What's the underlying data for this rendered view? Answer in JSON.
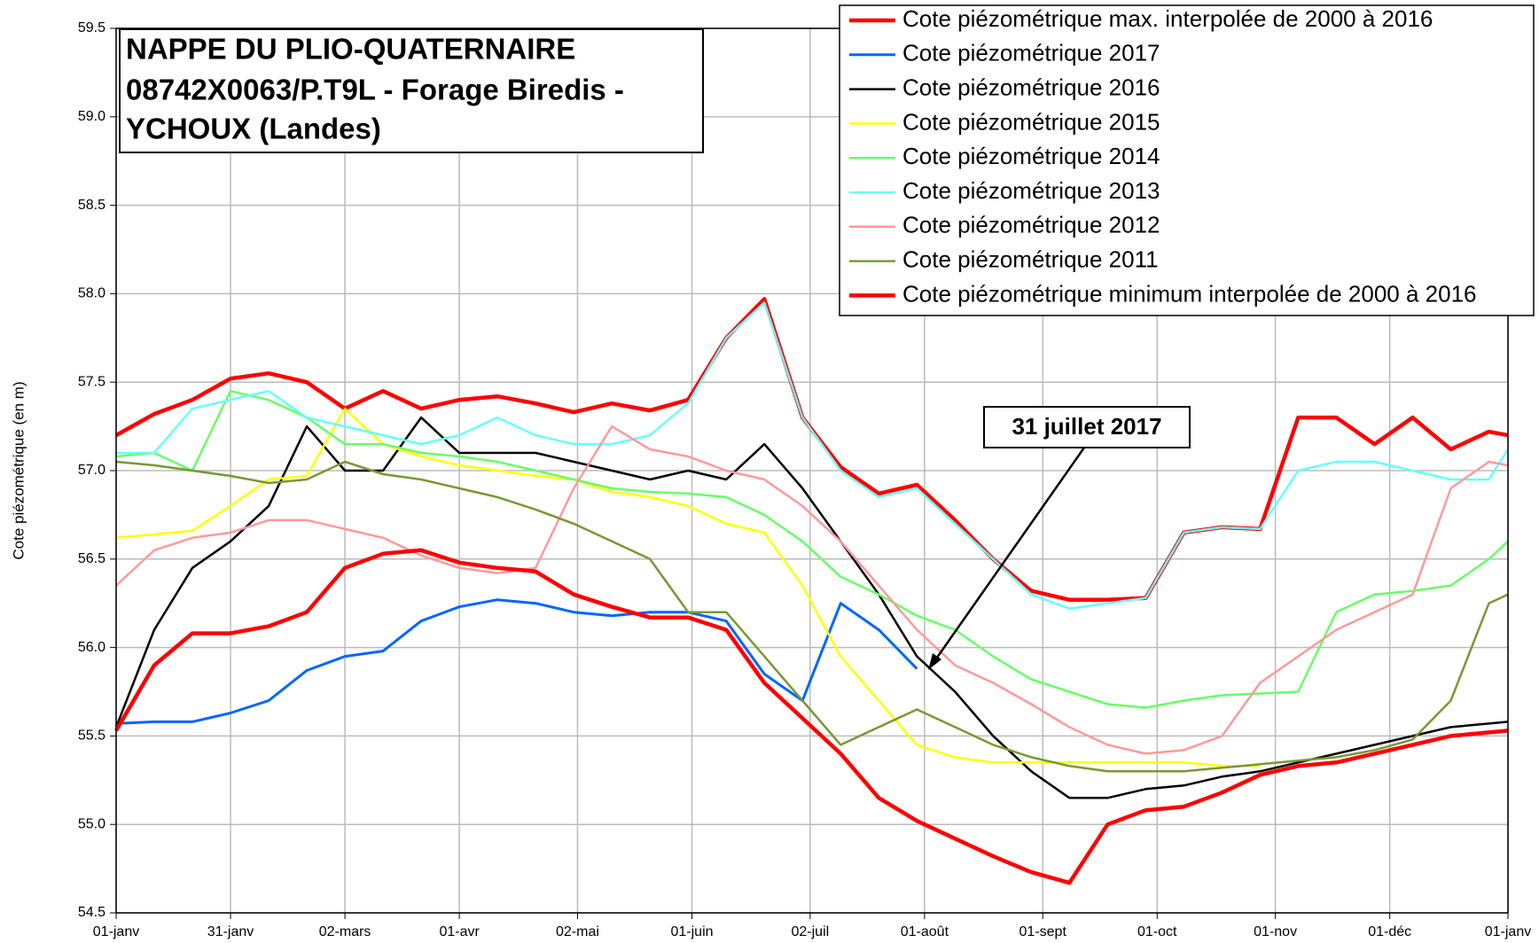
{
  "chart_data": {
    "type": "line",
    "title": [
      "NAPPE DU PLIO-QUATERNAIRE",
      "08742X0063/P.T9L - Forage Biredis -",
      "YCHOUX (Landes)"
    ],
    "y_label": "Cote piézométrique (en m)",
    "annotation": "31 juillet 2017",
    "x": [
      0,
      10,
      20,
      30,
      40,
      50,
      60,
      70,
      80,
      90,
      100,
      110,
      120,
      130,
      140,
      150,
      160,
      170,
      180,
      190,
      200,
      210,
      220,
      230,
      240,
      250,
      260,
      270,
      280,
      290,
      300,
      310,
      320,
      330,
      340,
      350,
      360,
      365
    ],
    "xlim": [
      0,
      365
    ],
    "xticks": [
      {
        "value": 0,
        "label": "01-janv"
      },
      {
        "value": 30,
        "label": "31-janv"
      },
      {
        "value": 60,
        "label": "02-mars"
      },
      {
        "value": 90,
        "label": "01-avr"
      },
      {
        "value": 121,
        "label": "02-mai"
      },
      {
        "value": 151,
        "label": "01-juin"
      },
      {
        "value": 182,
        "label": "02-juil"
      },
      {
        "value": 212,
        "label": "01-août"
      },
      {
        "value": 243,
        "label": "01-sept"
      },
      {
        "value": 273,
        "label": "01-oct"
      },
      {
        "value": 304,
        "label": "01-nov"
      },
      {
        "value": 334,
        "label": "01-déc"
      },
      {
        "value": 365,
        "label": "01-janv"
      }
    ],
    "ylim": [
      54.5,
      59.5
    ],
    "yticks": [
      54.5,
      {
        "value": 55,
        "label": "55.0"
      },
      55.5,
      {
        "value": 56,
        "label": "56.0"
      },
      56.5,
      {
        "value": 57,
        "label": "57.0"
      },
      57.5,
      {
        "value": 58,
        "label": "58.0"
      },
      58.5,
      {
        "value": 59,
        "label": "59.0"
      },
      59.5
    ],
    "grid": true,
    "legend": "upper right",
    "series": [
      {
        "name": "Cote piézométrique max. interpolée de 2000 à 2016",
        "color": "#ff0000",
        "width": 4.5,
        "values": [
          57.2,
          57.32,
          57.4,
          57.52,
          57.55,
          57.5,
          57.35,
          57.45,
          57.35,
          57.4,
          57.42,
          57.38,
          57.33,
          57.38,
          57.34,
          57.4,
          57.75,
          57.97,
          57.3,
          57.02,
          56.87,
          56.92,
          56.72,
          56.5,
          56.32,
          56.27,
          56.27,
          56.28,
          56.65,
          56.68,
          56.67,
          57.3,
          57.3,
          57.15,
          57.3,
          57.12,
          57.22,
          57.2
        ]
      },
      {
        "name": "Cote piézométrique 2017",
        "color": "#0066ff",
        "width": 3,
        "values": [
          55.57,
          55.58,
          55.58,
          55.63,
          55.7,
          55.87,
          55.95,
          55.98,
          56.15,
          56.23,
          56.27,
          56.25,
          56.2,
          56.18,
          56.2,
          56.2,
          56.15,
          55.85,
          55.7,
          56.25,
          56.1,
          55.88,
          null,
          null,
          null,
          null,
          null,
          null,
          null,
          null,
          null,
          null,
          null,
          null,
          null,
          null,
          null,
          null
        ]
      },
      {
        "name": "Cote piézométrique 2016",
        "color": "#000000",
        "width": 2.5,
        "values": [
          55.55,
          56.1,
          56.45,
          56.6,
          56.8,
          57.25,
          57.0,
          57.0,
          57.3,
          57.1,
          57.1,
          57.1,
          57.05,
          57.0,
          56.95,
          57.0,
          56.95,
          57.15,
          56.9,
          56.6,
          56.3,
          55.95,
          55.75,
          55.5,
          55.3,
          55.15,
          55.15,
          55.2,
          55.22,
          55.27,
          55.3,
          55.35,
          55.4,
          55.45,
          55.5,
          55.55,
          55.57,
          55.58
        ]
      },
      {
        "name": "Cote piézométrique 2015",
        "color": "#ffff00",
        "width": 2.5,
        "values": [
          56.62,
          56.64,
          56.66,
          56.8,
          56.95,
          56.97,
          57.35,
          57.15,
          57.08,
          57.03,
          57.0,
          56.97,
          56.95,
          56.88,
          56.85,
          56.8,
          56.7,
          56.65,
          56.35,
          55.95,
          55.7,
          55.45,
          55.38,
          55.35,
          55.35,
          55.35,
          55.35,
          55.35,
          55.35,
          55.33,
          55.33,
          null,
          null,
          null,
          null,
          null,
          null,
          null
        ]
      },
      {
        "name": "Cote piézométrique 2014",
        "color": "#66ff66",
        "width": 2.5,
        "values": [
          57.08,
          57.1,
          57.0,
          57.45,
          57.4,
          57.3,
          57.15,
          57.15,
          57.1,
          57.08,
          57.05,
          57.0,
          56.95,
          56.9,
          56.88,
          56.87,
          56.85,
          56.75,
          56.6,
          56.4,
          56.3,
          56.18,
          56.1,
          55.95,
          55.82,
          55.75,
          55.68,
          55.66,
          55.7,
          55.73,
          55.74,
          55.75,
          56.2,
          56.3,
          56.32,
          56.35,
          56.5,
          56.6
        ]
      },
      {
        "name": "Cote piézométrique 2013",
        "color": "#66ffff",
        "width": 2.5,
        "values": [
          57.1,
          57.1,
          57.35,
          57.4,
          57.45,
          57.3,
          57.25,
          57.2,
          57.15,
          57.2,
          57.3,
          57.2,
          57.15,
          57.15,
          57.2,
          57.38,
          57.75,
          57.95,
          57.3,
          57.0,
          56.85,
          56.9,
          56.7,
          56.5,
          56.3,
          56.22,
          56.25,
          56.28,
          56.65,
          56.68,
          56.67,
          57.0,
          57.05,
          57.05,
          57.0,
          56.95,
          56.95,
          57.12
        ]
      },
      {
        "name": "Cote piézométrique 2012",
        "color": "#ff9999",
        "width": 2.5,
        "values": [
          56.35,
          56.55,
          56.62,
          56.65,
          56.72,
          56.72,
          56.67,
          56.62,
          56.52,
          56.45,
          56.42,
          56.45,
          56.9,
          57.25,
          57.12,
          57.08,
          57.0,
          56.95,
          56.8,
          56.6,
          56.35,
          56.1,
          55.9,
          55.8,
          55.68,
          55.55,
          55.45,
          55.4,
          55.42,
          55.5,
          55.8,
          55.95,
          56.1,
          56.2,
          56.3,
          56.9,
          57.05,
          57.03
        ]
      },
      {
        "name": "Cote piézométrique 2011",
        "color": "#779933",
        "width": 2.5,
        "values": [
          57.05,
          57.03,
          57.0,
          56.97,
          56.93,
          56.95,
          57.05,
          56.98,
          56.95,
          56.9,
          56.85,
          56.78,
          56.7,
          56.6,
          56.5,
          56.2,
          56.2,
          55.95,
          55.7,
          55.45,
          55.55,
          55.65,
          55.55,
          55.45,
          55.38,
          55.33,
          55.3,
          55.3,
          55.3,
          55.32,
          55.34,
          55.36,
          55.38,
          55.42,
          55.48,
          55.7,
          56.25,
          56.3
        ]
      },
      {
        "name": "Cote piézométrique minimum interpolée de 2000 à 2016",
        "color": "#ff0000",
        "width": 4.5,
        "values": [
          55.53,
          55.9,
          56.08,
          56.08,
          56.12,
          56.2,
          56.45,
          56.53,
          56.55,
          56.48,
          56.45,
          56.43,
          56.3,
          56.23,
          56.17,
          56.17,
          56.1,
          55.8,
          55.6,
          55.4,
          55.15,
          55.02,
          54.92,
          54.82,
          54.73,
          54.67,
          55.0,
          55.08,
          55.1,
          55.18,
          55.28,
          55.33,
          55.35,
          55.4,
          55.45,
          55.5,
          55.52,
          55.53
        ]
      }
    ]
  }
}
